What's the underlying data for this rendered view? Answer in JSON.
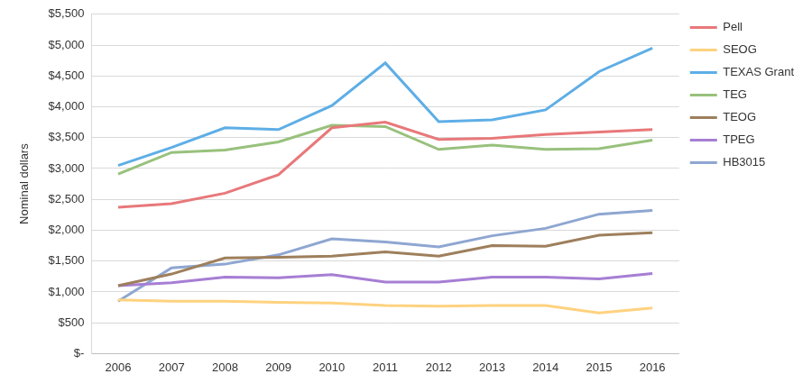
{
  "chart_data": {
    "type": "line",
    "y_label": "Nominal dollars",
    "categories": [
      "2006",
      "2007",
      "2008",
      "2009",
      "2010",
      "2011",
      "2012",
      "2013",
      "2014",
      "2015",
      "2016"
    ],
    "series": [
      {
        "name": "Pell",
        "color": "#e8787a",
        "values": [
          2370,
          2430,
          2600,
          2900,
          3660,
          3750,
          3470,
          3490,
          3550,
          3590,
          3630
        ]
      },
      {
        "name": "SEOG",
        "color": "#ffd27f",
        "values": [
          870,
          850,
          850,
          830,
          820,
          780,
          770,
          780,
          780,
          660,
          740
        ]
      },
      {
        "name": "TEXAS Grant",
        "color": "#5eaee6",
        "values": [
          3050,
          3340,
          3660,
          3630,
          4020,
          4710,
          3760,
          3790,
          3950,
          4570,
          4950
        ]
      },
      {
        "name": "TEG",
        "color": "#98c17c",
        "values": [
          2910,
          3260,
          3300,
          3430,
          3700,
          3680,
          3310,
          3380,
          3310,
          3320,
          3460
        ]
      },
      {
        "name": "TEOG",
        "color": "#9e7f5c",
        "values": [
          1100,
          1290,
          1550,
          1560,
          1580,
          1650,
          1580,
          1750,
          1740,
          1920,
          1960
        ]
      },
      {
        "name": "TPEG",
        "color": "#a67ed4",
        "values": [
          1100,
          1150,
          1240,
          1230,
          1280,
          1160,
          1160,
          1240,
          1240,
          1210,
          1300
        ]
      },
      {
        "name": "HB3015",
        "color": "#8ea6d1",
        "values": [
          850,
          1390,
          1450,
          1600,
          1860,
          1810,
          1730,
          1910,
          2030,
          2260,
          2320
        ]
      }
    ],
    "ylim": [
      0,
      5500
    ],
    "yticks": [
      {
        "value": 0,
        "label": "$-"
      },
      {
        "value": 500,
        "label": "$500"
      },
      {
        "value": 1000,
        "label": "$1,000"
      },
      {
        "value": 1500,
        "label": "$1,500"
      },
      {
        "value": 2000,
        "label": "$2,000"
      },
      {
        "value": 2500,
        "label": "$2,500"
      },
      {
        "value": 3000,
        "label": "$3,000"
      },
      {
        "value": 3500,
        "label": "$3,500"
      },
      {
        "value": 4000,
        "label": "$4,000"
      },
      {
        "value": 4500,
        "label": "$4,500"
      },
      {
        "value": 5000,
        "label": "$5,000"
      },
      {
        "value": 5500,
        "label": "$5,500"
      }
    ],
    "grid": true,
    "legend": "right"
  }
}
